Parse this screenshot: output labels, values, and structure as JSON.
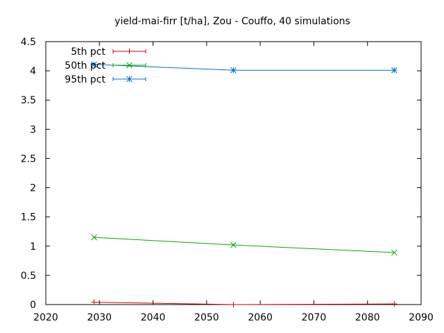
{
  "chart_data": {
    "type": "line",
    "title": "yield-mai-firr [t/ha], Zou - Couffo, 40 simulations",
    "xlabel": "",
    "ylabel": "",
    "xlim": [
      2020,
      2090
    ],
    "ylim": [
      0,
      4.5
    ],
    "x_ticks": [
      "2020",
      "2030",
      "2040",
      "2050",
      "2060",
      "2070",
      "2080",
      "2090"
    ],
    "y_ticks": [
      "0",
      "0.5",
      "1",
      "1.5",
      "2",
      "2.5",
      "3",
      "3.5",
      "4",
      "4.5"
    ],
    "grid": false,
    "legend_position": "top-left",
    "series": [
      {
        "name": "5th pct",
        "color": "#cc0000",
        "marker": "plus",
        "x": [
          2029,
          2055,
          2085
        ],
        "values": [
          0.04,
          0.0,
          0.01
        ]
      },
      {
        "name": "50th pct",
        "color": "#00aa00",
        "marker": "cross",
        "x": [
          2029,
          2055,
          2085
        ],
        "values": [
          1.15,
          1.02,
          0.89
        ]
      },
      {
        "name": "95th pct",
        "color": "#0072bd",
        "marker": "star",
        "x": [
          2029,
          2055,
          2085
        ],
        "values": [
          4.11,
          4.01,
          4.01
        ]
      }
    ]
  }
}
